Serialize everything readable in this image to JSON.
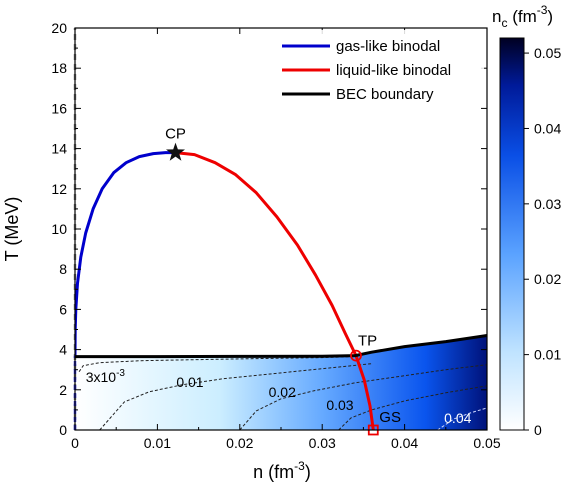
{
  "chart_data": {
    "type": "line",
    "xlabel": "n (fm",
    "xlabel_sup": "-3",
    "xlabel_end": ")",
    "ylabel": "T (MeV)",
    "xlim": [
      0,
      0.05
    ],
    "ylim": [
      0,
      20
    ],
    "x_ticks": [
      "0",
      "0.01",
      "0.02",
      "0.03",
      "0.04",
      "0.05"
    ],
    "y_ticks": [
      "0",
      "2",
      "4",
      "6",
      "8",
      "10",
      "12",
      "14",
      "16",
      "18",
      "20"
    ],
    "legend_position": "top-right",
    "series": [
      {
        "name": "gas-like binodal",
        "color": "#0000cc",
        "x": [
          0.0,
          3e-05,
          0.0001,
          0.0003,
          0.0007,
          0.0013,
          0.0022,
          0.0033,
          0.0047,
          0.0062,
          0.0078,
          0.0095,
          0.011,
          0.0122
        ],
        "y": [
          3.7,
          5.0,
          6.0,
          7.3,
          8.6,
          9.8,
          11.0,
          12.0,
          12.8,
          13.3,
          13.6,
          13.75,
          13.8,
          13.8
        ]
      },
      {
        "name": "liquid-like binodal",
        "color": "#ee0000",
        "x": [
          0.0122,
          0.0145,
          0.017,
          0.0195,
          0.022,
          0.0245,
          0.027,
          0.0292,
          0.0312,
          0.0328,
          0.0341,
          0.0351,
          0.0358,
          0.0362
        ],
        "y": [
          13.8,
          13.7,
          13.3,
          12.7,
          11.8,
          10.6,
          9.2,
          7.7,
          6.2,
          4.8,
          3.7,
          2.5,
          1.2,
          0.0
        ]
      },
      {
        "name": "BEC boundary",
        "color": "#000000",
        "x": [
          0.0,
          0.01,
          0.02,
          0.03,
          0.034,
          0.036,
          0.04,
          0.045,
          0.05
        ],
        "y": [
          3.65,
          3.65,
          3.66,
          3.67,
          3.7,
          3.87,
          4.15,
          4.4,
          4.7
        ]
      }
    ],
    "gas_dashed": {
      "color": "#3333dd",
      "x": [
        0.0,
        0.0
      ],
      "y": [
        0.0,
        3.7
      ]
    },
    "vertical_dashed": {
      "color": "#888888",
      "x": 0.0,
      "y": [
        0,
        20
      ]
    },
    "contours": [
      {
        "label": "0.01",
        "x": [
          0.003,
          0.006,
          0.009,
          0.013,
          0.018,
          0.024,
          0.03,
          0.036
        ],
        "y": [
          0.0,
          1.4,
          1.9,
          2.25,
          2.55,
          2.8,
          3.05,
          3.3
        ]
      },
      {
        "label": "0.02",
        "x": [
          0.02,
          0.022,
          0.025,
          0.029,
          0.034,
          0.04,
          0.045,
          0.05
        ],
        "y": [
          0.0,
          0.95,
          1.55,
          1.95,
          2.35,
          2.7,
          3.0,
          3.25
        ]
      },
      {
        "label": "0.03",
        "x": [
          0.032,
          0.0335,
          0.036,
          0.04,
          0.045,
          0.05
        ],
        "y": [
          0.0,
          0.6,
          1.0,
          1.45,
          1.85,
          2.2
        ]
      },
      {
        "label": "0.04",
        "x": [
          0.044,
          0.046,
          0.048,
          0.05
        ],
        "y": [
          0.0,
          0.55,
          0.85,
          1.1
        ]
      },
      {
        "label": "",
        "x": [
          0.0005,
          0.001,
          0.003,
          0.008,
          0.015,
          0.022,
          0.03,
          0.034
        ],
        "y": [
          2.9,
          3.2,
          3.35,
          3.45,
          3.5,
          3.55,
          3.6,
          3.65
        ]
      }
    ],
    "contour_labels": [
      {
        "text": "3x10",
        "sup": "-3",
        "x": 0.0013,
        "y": 2.4,
        "color": "#000000"
      },
      {
        "text": "0.01",
        "sup": "",
        "x": 0.0123,
        "y": 2.15,
        "color": "#000000"
      },
      {
        "text": "0.02",
        "sup": "",
        "x": 0.0235,
        "y": 1.65,
        "color": "#000000"
      },
      {
        "text": "0.03",
        "sup": "",
        "x": 0.0305,
        "y": 1.0,
        "color": "#000000"
      },
      {
        "text": "0.04",
        "sup": "",
        "x": 0.0448,
        "y": 0.35,
        "color": "#ffffff"
      }
    ],
    "points": [
      {
        "label": "CP",
        "marker": "star",
        "x": 0.0122,
        "y": 13.8
      },
      {
        "label": "TP",
        "marker": "circle",
        "x": 0.0341,
        "y": 3.7
      },
      {
        "label": "GS",
        "marker": "square",
        "x": 0.0362,
        "y": 0.0
      }
    ],
    "colorbar": {
      "title": "n",
      "title_sub": "c",
      "title_unit": " (fm",
      "title_sup": "-3",
      "title_end": ")",
      "range": [
        0,
        0.052
      ],
      "ticks": [
        "0",
        "0.01",
        "0.02",
        "0.03",
        "0.04",
        "0.05"
      ],
      "color_low": "#ffffff",
      "color_high": "#000022"
    }
  }
}
